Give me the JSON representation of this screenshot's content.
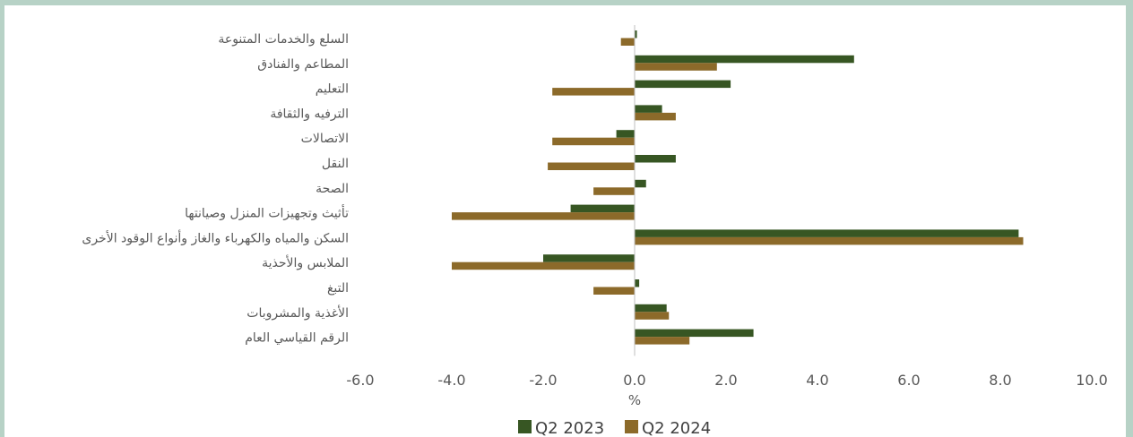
{
  "chart_data": {
    "type": "bar",
    "orientation": "horizontal",
    "categories": [
      "السلع والخدمات المتنوعة",
      "المطاعم والفنادق",
      "التعليم",
      "الترفيه والثقافة",
      "الاتصالات",
      "النقل",
      "الصحة",
      "تأثيث وتجهيزات المنزل وصيانتها",
      "السكن والمياه والكهرباء والغاز وأنواع الوقود الأخرى",
      "الملابس والأحذية",
      "التبغ",
      "الأغذية والمشروبات",
      "الرقم القياسي العام"
    ],
    "series": [
      {
        "name": "Q2 2023",
        "color": "#375623",
        "values": [
          0.05,
          4.8,
          2.1,
          0.6,
          -0.4,
          0.9,
          0.25,
          -1.4,
          8.4,
          -2.0,
          0.1,
          0.7,
          2.6
        ]
      },
      {
        "name": "Q2 2024",
        "color": "#8c6a2a",
        "values": [
          -0.3,
          1.8,
          -1.8,
          0.9,
          -1.8,
          -1.9,
          -0.9,
          -4.0,
          8.5,
          -4.0,
          -0.9,
          0.75,
          1.2
        ]
      }
    ],
    "xlabel": "%",
    "xlim": [
      -6.0,
      10.0
    ],
    "xticks": [
      "-6.0",
      "-4.0",
      "-2.0",
      "0.0",
      "2.0",
      "4.0",
      "6.0",
      "8.0",
      "10.0"
    ],
    "grid": false,
    "legend_position": "bottom"
  }
}
